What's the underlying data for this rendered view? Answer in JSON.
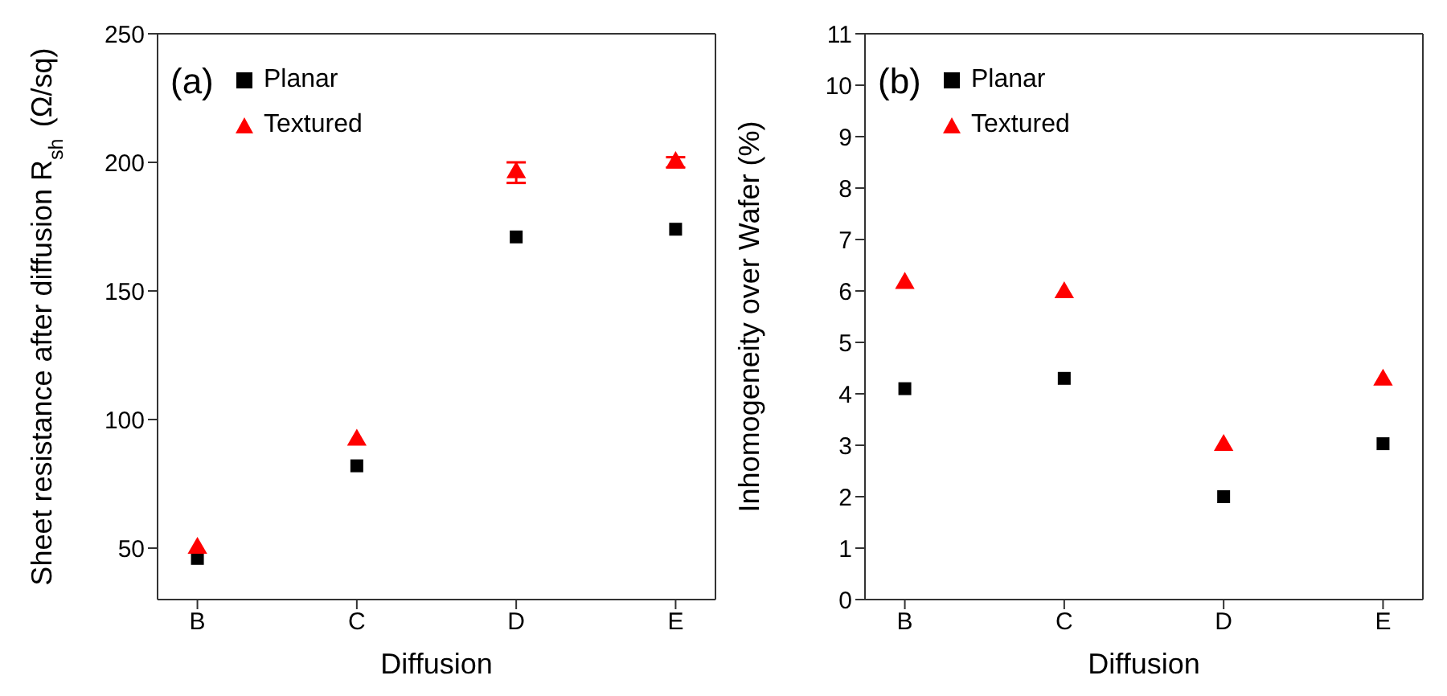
{
  "chart_data": [
    {
      "type": "scatter",
      "xlabel": "Diffusion",
      "ylabel": "Sheet resistance after diffusion R$_{sh}$ (Ω/sq)",
      "categories": [
        "B",
        "C",
        "D",
        "E"
      ],
      "ylim": [
        30,
        250
      ],
      "yticks": [
        50,
        100,
        150,
        200,
        250
      ],
      "legend": "top left",
      "annotations": [
        "(a)"
      ],
      "series": [
        {
          "name": "Planar",
          "color": "#000000",
          "marker": "square",
          "values": [
            46,
            82,
            171,
            174
          ]
        },
        {
          "name": "Textured",
          "color": "#ff0000",
          "marker": "triangle",
          "values": [
            50,
            92,
            196,
            200
          ],
          "errors": [
            null,
            null,
            4,
            2
          ]
        }
      ]
    },
    {
      "type": "scatter",
      "xlabel": "Diffusion",
      "ylabel": "Inhomogeneity over Wafer (%)",
      "categories": [
        "B",
        "C",
        "D",
        "E"
      ],
      "ylim": [
        0,
        11
      ],
      "yticks": [
        0,
        1,
        2,
        3,
        4,
        5,
        6,
        7,
        8,
        9,
        10,
        11
      ],
      "legend": "top left",
      "annotations": [
        "(b)"
      ],
      "series": [
        {
          "name": "Planar",
          "color": "#000000",
          "marker": "square",
          "values": [
            4.1,
            4.3,
            2.0,
            3.03
          ]
        },
        {
          "name": "Textured",
          "color": "#ff0000",
          "marker": "triangle",
          "values": [
            6.15,
            5.97,
            3.0,
            4.27
          ]
        }
      ]
    }
  ]
}
